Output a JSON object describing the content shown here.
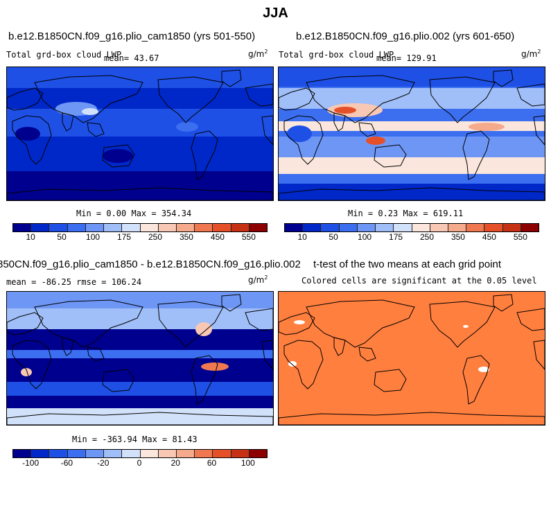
{
  "title": "JJA",
  "colors": [
    "#00008f",
    "#0028c8",
    "#1e50e6",
    "#3c6ef0",
    "#6e96f5",
    "#a0bef8",
    "#d2e1fa",
    "#fae6dc",
    "#f8c8b4",
    "#f5aa8c",
    "#f07850",
    "#e65028",
    "#c83214",
    "#8c0000"
  ],
  "panels": [
    {
      "title": "b.e12.B1850CN.f09_g16.plio_cam1850 (yrs 501-550)",
      "left_label": "Total grd-box cloud LWP",
      "mean_label": "mean=  43.67",
      "units": "g/m",
      "units_exp": "2",
      "stats": "Min =   0.00 Max = 354.34",
      "map_type": "low-lwp",
      "colorbar_ticks": [
        "10",
        "50",
        "100",
        "175",
        "250",
        "350",
        "450",
        "550"
      ]
    },
    {
      "title": "b.e12.B1850CN.f09_g16.plio.002 (yrs 601-650)",
      "left_label": "Total grd-box cloud LWP",
      "mean_label": "mean= 129.91",
      "units": "g/m",
      "units_exp": "2",
      "stats": "Min =   0.23 Max = 619.11",
      "map_type": "high-lwp",
      "colorbar_ticks": [
        "10",
        "50",
        "100",
        "175",
        "250",
        "350",
        "450",
        "550"
      ]
    },
    {
      "title": "850CN.f09_g16.plio_cam1850 - b.e12.B1850CN.f09_g16.plio.002",
      "left_label": "mean = -86.25    rmse = 106.24",
      "units": "g/m",
      "units_exp": "2",
      "stats": "Min = -363.94 Max =  81.43",
      "map_type": "difference",
      "colorbar_ticks": [
        "-100",
        "-60",
        "-20",
        "0",
        "20",
        "60",
        "100"
      ]
    },
    {
      "title": "t-test of the two means at each grid point",
      "subtitle": "Colored cells are significant at the 0.05 level",
      "map_type": "significance"
    }
  ]
}
